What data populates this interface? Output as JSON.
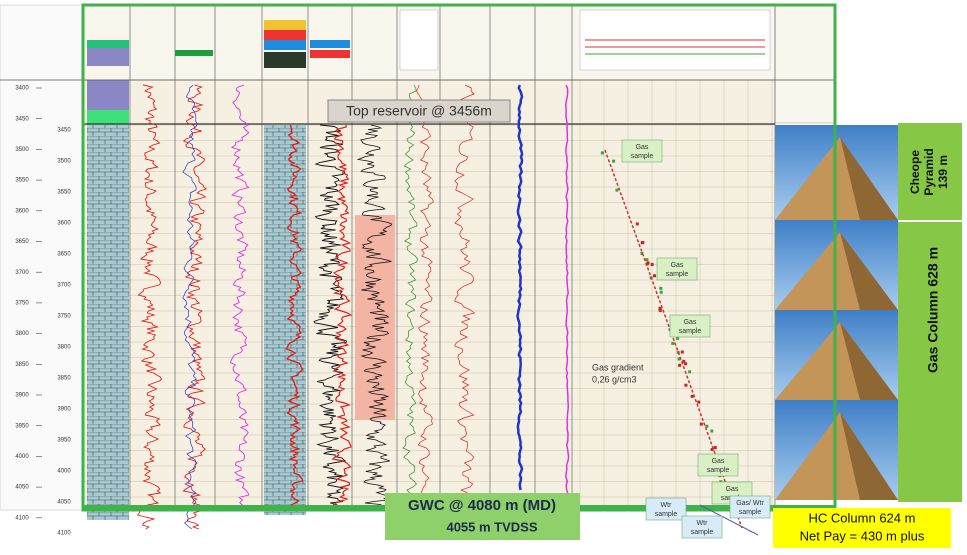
{
  "depth_md": [
    "3400",
    "3450",
    "3500",
    "3550",
    "3600",
    "3650",
    "3700",
    "3750",
    "3800",
    "3850",
    "3900",
    "3950",
    "4000",
    "4050",
    "4100"
  ],
  "depth_tvd": [
    "3450",
    "3500",
    "3550",
    "3600",
    "3650",
    "3700",
    "3750",
    "3800",
    "3850",
    "3900",
    "3950",
    "4000",
    "4050",
    "4100"
  ],
  "annotations": {
    "top_reservoir": "Top reservoir @ 3456m",
    "gwc": {
      "line1": "GWC @ 4080 m (MD)",
      "line2": "4055 m  TVDSS"
    },
    "hc_column": {
      "line1": "HC Column  624 m",
      "line2": "Net Pay = 430 m plus"
    },
    "pyramid": {
      "line1": "Cheope",
      "line2": "Pyramid",
      "line3": "139 m"
    },
    "gas_column": "Gas Column 628 m",
    "gas_gradient": {
      "line1": "Gas gradient",
      "line2": "0,26 g/cm3"
    },
    "samples": [
      {
        "line1": "Gas",
        "line2": "sample"
      },
      {
        "line1": "Gas",
        "line2": "sample"
      },
      {
        "line1": "Gas",
        "line2": "sample"
      },
      {
        "line1": "Gas",
        "line2": "sample"
      },
      {
        "line1": "Gas",
        "line2": "sample"
      },
      {
        "line1": "Wtr",
        "line2": "sample"
      },
      {
        "line1": "Wtr",
        "line2": "sample"
      },
      {
        "line1": "Gas/ Wtr",
        "line2": "sample"
      }
    ]
  }
}
